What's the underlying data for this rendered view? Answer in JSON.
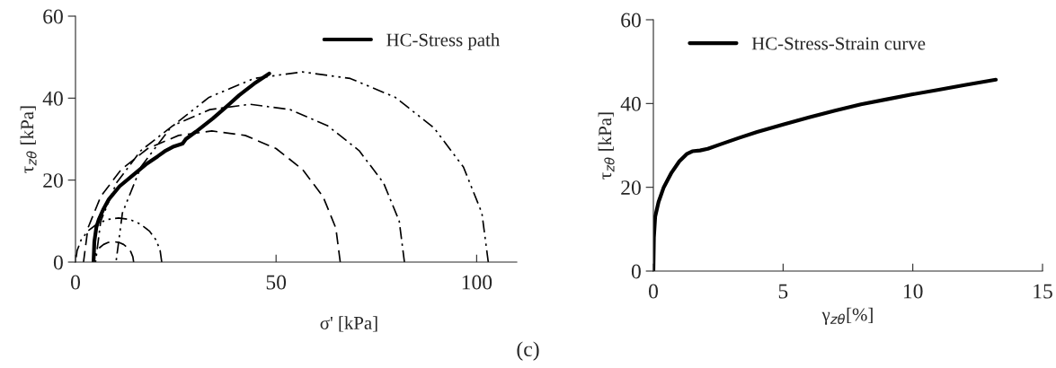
{
  "chart_data": [
    {
      "type": "line",
      "xlabel": "σ' [kPa]",
      "ylabel": "τ$_{zθ}$ [kPa]",
      "xlim": [
        0,
        110
      ],
      "ylim": [
        0,
        60
      ],
      "xticks": [
        0,
        50,
        100
      ],
      "yticks": [
        0,
        20,
        40,
        60
      ],
      "grid": false,
      "legend": "top right",
      "marker": "none",
      "series": [
        {
          "name": "HC-Stress path",
          "color": "#000000",
          "line_style": "solid",
          "x": [
            4.5,
            4.7,
            5.2,
            5.8,
            7,
            8.3,
            11,
            14.2,
            17.5,
            20.5,
            22.5,
            24.5,
            26.7,
            27.5,
            30,
            34.2,
            37.5,
            40.8,
            44.5,
            48.3
          ],
          "values": [
            0,
            5,
            8.5,
            10.4,
            13,
            15.3,
            18.5,
            21.1,
            23.8,
            25.8,
            27.2,
            28.2,
            28.9,
            30,
            31.8,
            35,
            37.8,
            40.7,
            43.5,
            46
          ]
        },
        {
          "color": "#000000",
          "line_style": "dashed",
          "x": [
            14.5,
            14.3,
            13.8,
            13.0,
            12.0,
            10.8,
            9.5,
            8.2,
            7.0,
            6.0,
            5.2,
            4.7,
            4.5
          ],
          "values": [
            0,
            1.3,
            2.5,
            3.5,
            4.3,
            4.8,
            5,
            4.8,
            4.3,
            3.5,
            2.5,
            1.3,
            0
          ]
        },
        {
          "color": "#000000",
          "line_style": "dashdotdot",
          "x": [
            21.5,
            21.1,
            20.1,
            18.4,
            16.1,
            13.5,
            10.75,
            8.0,
            5.4,
            3.1,
            1.4,
            0.4,
            0
          ],
          "values": [
            0,
            2.8,
            5.4,
            7.6,
            9.3,
            10.4,
            10.75,
            10.4,
            9.3,
            7.6,
            5.4,
            2.8,
            0
          ]
        },
        {
          "color": "#000000",
          "line_style": "dashed",
          "x": [
            66,
            64.9,
            61.7,
            56.6,
            50,
            42.3,
            34,
            25.7,
            18,
            11.4,
            6.3,
            3.1,
            2
          ],
          "values": [
            0,
            8.3,
            16,
            22.6,
            27.7,
            30.9,
            32,
            30.9,
            27.7,
            22.6,
            16,
            8.3,
            0
          ]
        },
        {
          "color": "#000000",
          "line_style": "dashdot",
          "x": [
            82,
            80.7,
            76.8,
            70.7,
            62.8,
            53.5,
            43.5,
            33.5,
            24.3,
            16.3,
            10.2,
            6.3,
            5
          ],
          "values": [
            0,
            10,
            19.3,
            27.2,
            33.3,
            37.2,
            38.5,
            37.2,
            33.3,
            27.2,
            19.3,
            10,
            0
          ]
        },
        {
          "color": "#000000",
          "line_style": "dashdotdot",
          "x": [
            102.9,
            101.3,
            96.7,
            89.3,
            79.7,
            68.5,
            56.5,
            44.5,
            33.3,
            23.7,
            16.3,
            11.7,
            10.1
          ],
          "values": [
            0,
            12,
            23.2,
            32.8,
            40.2,
            44.8,
            46.4,
            44.8,
            40.2,
            32.8,
            23.2,
            12,
            0
          ]
        }
      ]
    },
    {
      "type": "line",
      "xlabel": "γ$_{zθ}$[%]",
      "ylabel": "τ$_{zθ}$ [kPa]",
      "xlim": [
        0,
        15
      ],
      "ylim": [
        0,
        60
      ],
      "xticks": [
        0,
        5,
        10,
        15
      ],
      "yticks": [
        0,
        20,
        40,
        60
      ],
      "grid": false,
      "legend": "top left",
      "marker": "none",
      "annotations": [
        "(c)"
      ],
      "series": [
        {
          "name": "HC-Stress-Strain curve",
          "color": "#000000",
          "line_style": "solid",
          "x": [
            0,
            0.02,
            0.07,
            0.2,
            0.4,
            0.7,
            1.0,
            1.3,
            1.5,
            1.8,
            2.1,
            2.6,
            3.3,
            4.0,
            5,
            6,
            7,
            8,
            9,
            10,
            11,
            12,
            13.2
          ],
          "values": [
            0,
            8,
            13,
            16.5,
            20,
            23.5,
            26.2,
            28,
            28.6,
            28.8,
            29.2,
            30.3,
            31.8,
            33.2,
            35,
            36.7,
            38.3,
            39.8,
            41,
            42.2,
            43.3,
            44.4,
            45.7
          ]
        }
      ]
    }
  ]
}
